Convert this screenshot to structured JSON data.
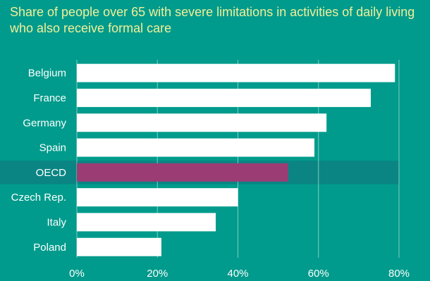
{
  "chart_data": {
    "type": "bar",
    "orientation": "horizontal",
    "title": "Share of people over 65 with severe limitations in activities of daily living who also receive formal care",
    "categories": [
      "Belgium",
      "France",
      "Germany",
      "Spain",
      "OECD",
      "Czech Rep.",
      "Italy",
      "Poland"
    ],
    "values": [
      79,
      73,
      62,
      59,
      52.5,
      40,
      34.5,
      21
    ],
    "unit": "%",
    "xlim": [
      0,
      80
    ],
    "xticks": [
      "0%",
      "20%",
      "40%",
      "60%",
      "80%"
    ],
    "highlight_category": "OECD",
    "grid": "vertical",
    "colors": {
      "background": "#009b8c",
      "bar": "#ffffff",
      "highlight_bar": "#9b3d74",
      "highlight_band": "#0a8583",
      "grid": "#7fcdc5",
      "title": "#f2ef9a",
      "text": "#ffffff"
    }
  }
}
